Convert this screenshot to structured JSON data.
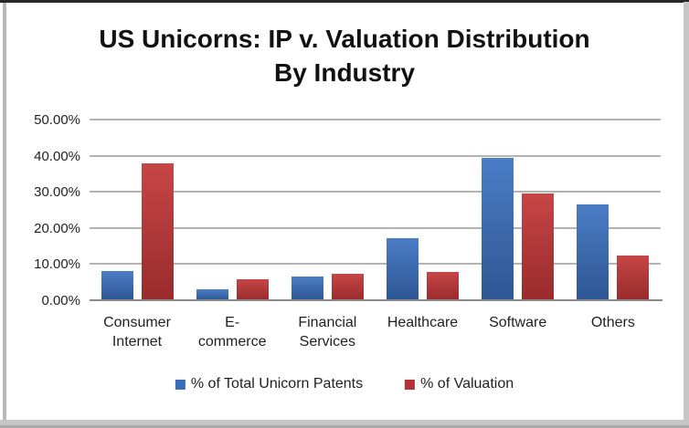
{
  "title": {
    "line1": "US Unicorns: IP v. Valuation Distribution",
    "line2": "By Industry"
  },
  "chart_data": {
    "type": "bar",
    "title": "US Unicorns: IP v. Valuation Distribution By Industry",
    "categories": [
      "Consumer Internet",
      "E-commerce",
      "Financial Services",
      "Healthcare",
      "Software",
      "Others"
    ],
    "category_label_lines": [
      [
        "Consumer",
        "Internet"
      ],
      [
        "E-",
        "commerce"
      ],
      [
        "Financial",
        "Services"
      ],
      [
        "Healthcare"
      ],
      [
        "Software"
      ],
      [
        "Others"
      ]
    ],
    "series": [
      {
        "name": "% of Total Unicorn Patents",
        "color": "#3b6cb5",
        "gradient_top": "#4b7dc6",
        "gradient_bottom": "#2e5694",
        "values": [
          8.1,
          3.0,
          6.5,
          17.1,
          39.5,
          26.4
        ]
      },
      {
        "name": "% of Valuation",
        "color": "#b33334",
        "gradient_top": "#c74646",
        "gradient_bottom": "#992b2d",
        "values": [
          37.9,
          5.7,
          7.4,
          7.8,
          29.6,
          12.4
        ]
      }
    ],
    "ylim": [
      0,
      50
    ],
    "yticks": [
      {
        "value": 0,
        "label": "0.00%"
      },
      {
        "value": 10,
        "label": "10.00%"
      },
      {
        "value": 20,
        "label": "20.00%"
      },
      {
        "value": 30,
        "label": "30.00%"
      },
      {
        "value": 40,
        "label": "40.00%"
      },
      {
        "value": 50,
        "label": "50.00%"
      }
    ],
    "grid": true,
    "legend_position": "bottom",
    "xlabel": "",
    "ylabel": ""
  },
  "colors": {
    "gridline": "#b3b3b3",
    "axis_line": "#8a8a8a",
    "text": "#1f1f1f",
    "title_text": "#111111"
  }
}
